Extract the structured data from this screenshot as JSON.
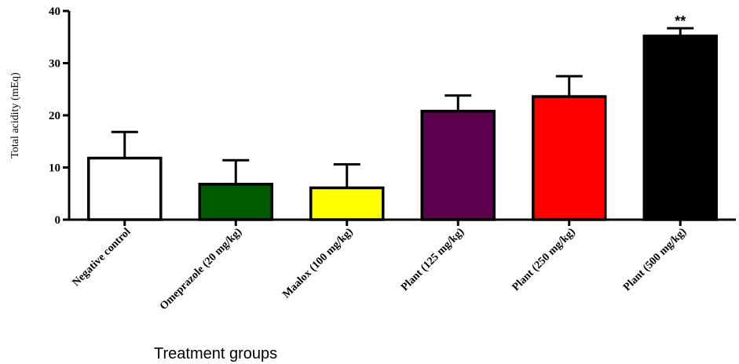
{
  "chart_data": {
    "type": "bar",
    "title": "",
    "xlabel": "Treatment groups",
    "ylabel": "Total acidity (mEq)",
    "ylim": [
      0,
      40
    ],
    "yticks": [
      "0",
      "10",
      "20",
      "30",
      "40"
    ],
    "grid": false,
    "categories": [
      "Negative control",
      "Omeprazole (20 mg/kg)",
      "Maalox (100 mg/kg)",
      "Plant (125 mg/kg)",
      "Plant (250 mg/kg)",
      "Plant (500 mg/kg)"
    ],
    "values": [
      11.8,
      6.8,
      6.1,
      20.8,
      23.6,
      35.2
    ],
    "error_upper": [
      5.0,
      4.6,
      4.5,
      3.0,
      3.9,
      1.5
    ],
    "colors": [
      "#ffffff",
      "#005a00",
      "#ffff00",
      "#5c004d",
      "#ff0000",
      "#000000"
    ],
    "annotations": [
      "",
      "",
      "",
      "",
      "",
      "**"
    ]
  }
}
